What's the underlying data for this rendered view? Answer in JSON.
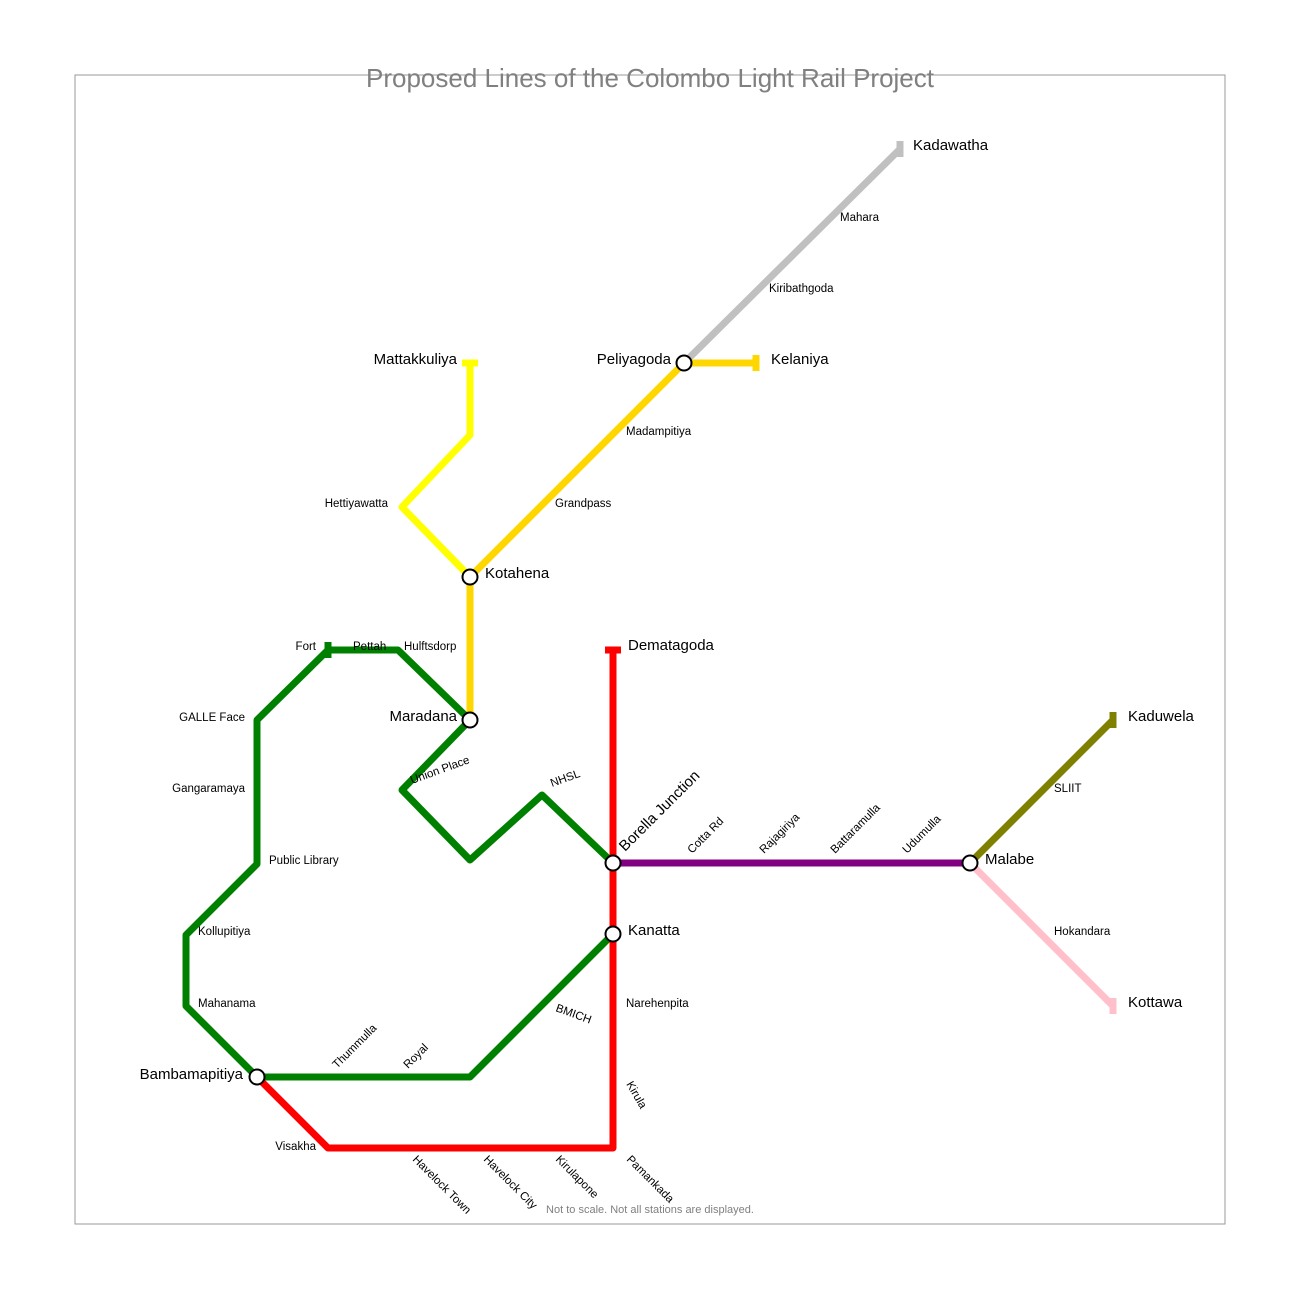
{
  "title": "Proposed Lines of the Colombo Light Rail Project",
  "note": "Not to scale. Not all stations are displayed.",
  "colors": {
    "green_line": "#008000",
    "red_line": "#ff0000",
    "purple_line": "#800080",
    "yellow_line": "#ffff00",
    "gold_line": "#ffd700",
    "gold_line_stub": "#ffd700",
    "grey_line": "#c0c0c0",
    "olive_line": "#808000",
    "pink_line": "#ffc0cb",
    "interchange_fill": "#ffffff",
    "interchange_stroke": "#000000"
  },
  "terminals": {
    "kadawatha": "Kadawatha",
    "kelaniya": "Kelaniya",
    "mattakkuliya": "Mattakkuliya",
    "dematagoda": "Dematagoda",
    "kaduwela": "Kaduwela",
    "kottawa": "Kottawa"
  },
  "interchanges": {
    "peliyagoda": "Peliyagoda",
    "kotahena": "Kotahena",
    "maradana": "Maradana",
    "borella_junction": "Borella Junction",
    "malabe": "Malabe",
    "kanatta": "Kanatta",
    "bambamapitiya": "Bambamapitiya"
  },
  "stations": {
    "mahara": "Mahara",
    "kiribathgoda": "Kiribathgoda",
    "madampitiya": "Madampitiya",
    "grandpass": "Grandpass",
    "hettiyawatta": "Hettiyawatta",
    "fort": "Fort",
    "pettah": "Pettah",
    "hulftsdorp": "Hulftsdorp",
    "galle_face": "GALLE Face",
    "gangaramaya": "Gangaramaya",
    "public_library": "Public Library",
    "kollupitiya": "Kollupitiya",
    "mahanama": "Mahanama",
    "union_place": "Union Place",
    "nhsl": "NHSL",
    "cotta_rd": "Cotta Rd",
    "rajagiriya": "Rajagiriya",
    "battaramulla": "Battaramulla",
    "udumulla": "Udumulla",
    "sliit": "SLIIT",
    "hokandara": "Hokandara",
    "narehenpita": "Narehenpita",
    "kirula": "Kirula",
    "bmich": "BMICH",
    "thummulla": "Thummulla",
    "royal": "Royal",
    "visakha": "Visakha",
    "havelock_town": "Havelock Town",
    "havelock_city": "Havelock City",
    "kirulapone": "Kirulapone",
    "pamankada": "Pamankada"
  }
}
